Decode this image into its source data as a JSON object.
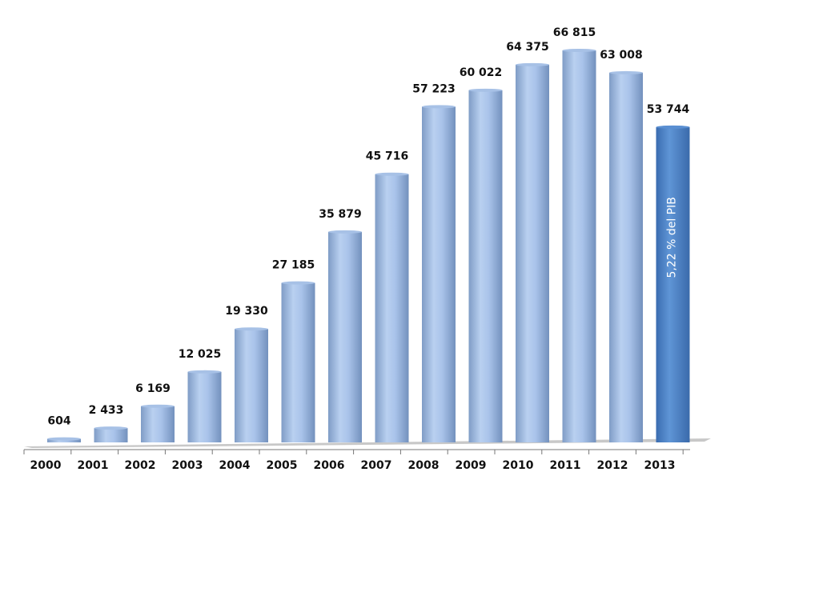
{
  "chart_data": {
    "type": "bar",
    "style": "3d-cylinder",
    "categories": [
      "2000",
      "2001",
      "2002",
      "2003",
      "2004",
      "2005",
      "2006",
      "2007",
      "2008",
      "2009",
      "2010",
      "2011",
      "2012",
      "2013"
    ],
    "values": [
      604,
      2433,
      6169,
      12025,
      19330,
      27185,
      35879,
      45716,
      57223,
      60022,
      64375,
      66815,
      63008,
      53744
    ],
    "value_labels": [
      "604",
      "2 433",
      "6 169",
      "12 025",
      "19 330",
      "27 185",
      "35 879",
      "45 716",
      "57 223",
      "60 022",
      "64 375",
      "66 815",
      "63 008",
      "53 744"
    ],
    "annotation": {
      "category": "2013",
      "text": "5,22 % del PIB"
    },
    "highlight_category": "2013",
    "title": "",
    "xlabel": "",
    "ylabel": "",
    "ylim": [
      0,
      67000
    ],
    "grid": false,
    "legend": "none",
    "colors": {
      "bar": "#9bb9e2",
      "highlight": "#4f86c9"
    }
  }
}
